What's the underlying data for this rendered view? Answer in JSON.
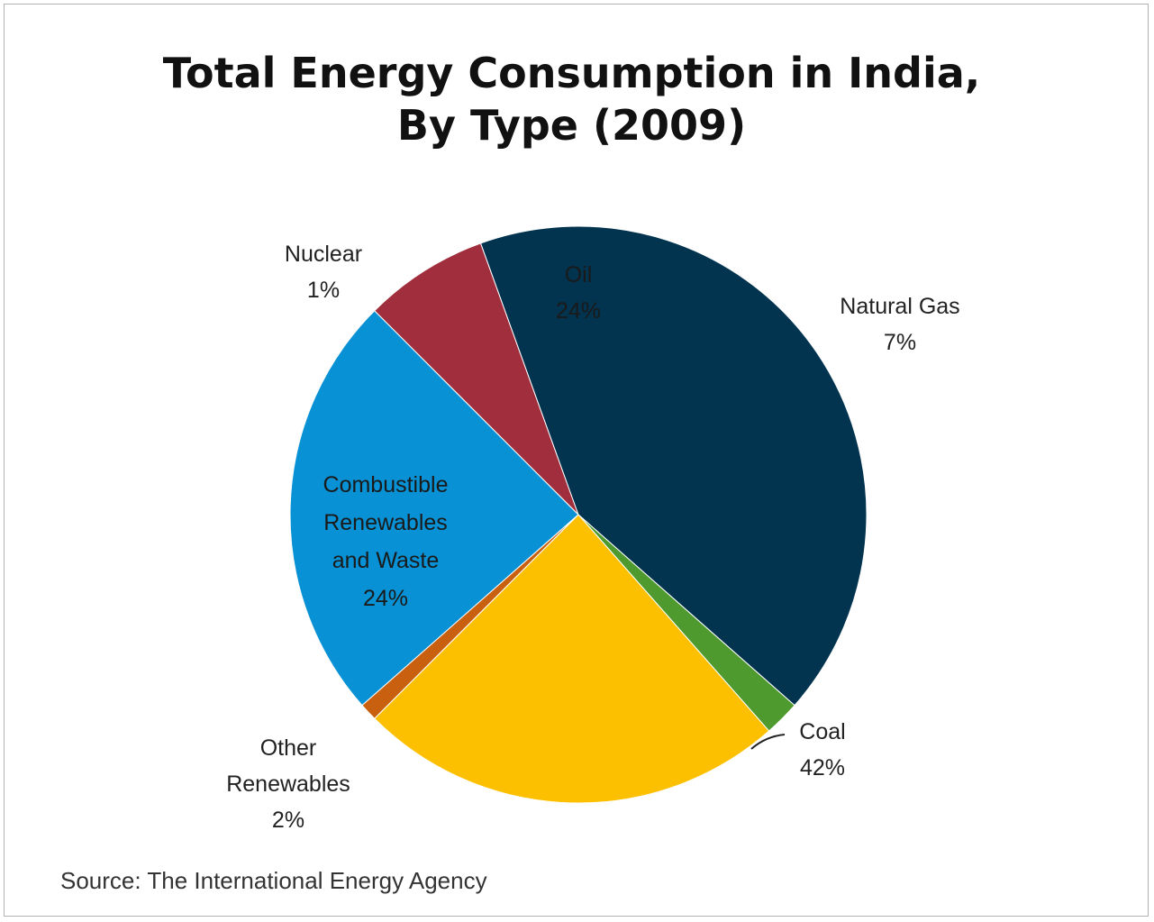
{
  "chart_data": {
    "type": "pie",
    "title": [
      "Total Energy Consumption in India,",
      "By Type (2009)"
    ],
    "source": "Source: The International Energy Agency",
    "slices": [
      {
        "label": [
          "Oil"
        ],
        "pct": "24%",
        "value": 24,
        "color": "#0891d4"
      },
      {
        "label": [
          "Natural Gas"
        ],
        "pct": "7%",
        "value": 7,
        "color": "#a02e3c"
      },
      {
        "label": [
          "Coal"
        ],
        "pct": "42%",
        "value": 42,
        "color": "#02334f"
      },
      {
        "label": [
          "Other",
          "Renewables"
        ],
        "pct": "2%",
        "value": 2,
        "color": "#4e9a2e"
      },
      {
        "label": [
          "Combustible",
          "Renewables",
          "and Waste"
        ],
        "pct": "24%",
        "value": 24,
        "color": "#fcc000"
      },
      {
        "label": [
          "Nuclear"
        ],
        "pct": "1%",
        "value": 1,
        "color": "#c86010"
      }
    ]
  }
}
